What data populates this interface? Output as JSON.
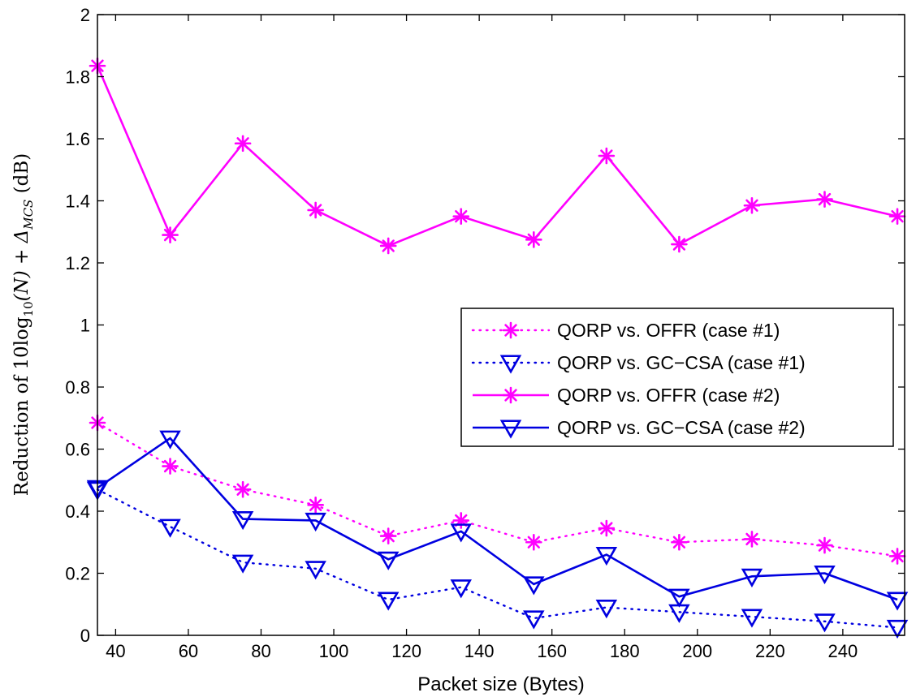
{
  "chart_data": {
    "type": "line",
    "xlabel": "Packet size (Bytes)",
    "ylabel_parts": {
      "prefix": "Reduction of 10log",
      "sub1": "10",
      "mid": "(N) + Δ",
      "sub2": "MCS",
      "suffix": " (dB)"
    },
    "x": [
      35,
      55,
      75,
      95,
      115,
      135,
      155,
      175,
      195,
      215,
      235,
      255
    ],
    "xlim": [
      35,
      257
    ],
    "ylim": [
      0,
      2
    ],
    "xticks": [
      40,
      60,
      80,
      100,
      120,
      140,
      160,
      180,
      200,
      220,
      240
    ],
    "yticks": [
      0,
      0.2,
      0.4,
      0.6,
      0.8,
      1,
      1.2,
      1.4,
      1.6,
      1.8,
      2
    ],
    "xtick_labels": [
      "40",
      "60",
      "80",
      "100",
      "120",
      "140",
      "160",
      "180",
      "200",
      "220",
      "240"
    ],
    "ytick_labels": [
      "0",
      "0.2",
      "0.4",
      "0.6",
      "0.8",
      "1",
      "1.2",
      "1.4",
      "1.6",
      "1.8",
      "2"
    ],
    "grid": false,
    "legend_position": "center-right",
    "series": [
      {
        "name": "QORP vs. OFFR (case #1)",
        "color": "#ff00ff",
        "line_style": "dotted",
        "marker": "asterisk",
        "values": [
          0.685,
          0.545,
          0.47,
          0.42,
          0.32,
          0.37,
          0.3,
          0.345,
          0.3,
          0.31,
          0.29,
          0.255
        ]
      },
      {
        "name": "QORP vs. GC−CSA (case #1)",
        "color": "#0000e0",
        "line_style": "dotted",
        "marker": "triangle-down",
        "values": [
          0.47,
          0.35,
          0.235,
          0.215,
          0.115,
          0.155,
          0.055,
          0.09,
          0.075,
          0.06,
          0.045,
          0.025
        ]
      },
      {
        "name": "QORP vs. OFFR (case #2)",
        "color": "#ff00ff",
        "line_style": "solid",
        "marker": "asterisk",
        "values": [
          1.835,
          1.29,
          1.585,
          1.37,
          1.255,
          1.35,
          1.275,
          1.545,
          1.26,
          1.385,
          1.405,
          1.35
        ]
      },
      {
        "name": "QORP vs. GC−CSA (case #2)",
        "color": "#0000e0",
        "line_style": "solid",
        "marker": "triangle-down",
        "values": [
          0.475,
          0.635,
          0.375,
          0.37,
          0.245,
          0.335,
          0.165,
          0.26,
          0.125,
          0.19,
          0.2,
          0.115
        ]
      }
    ]
  }
}
